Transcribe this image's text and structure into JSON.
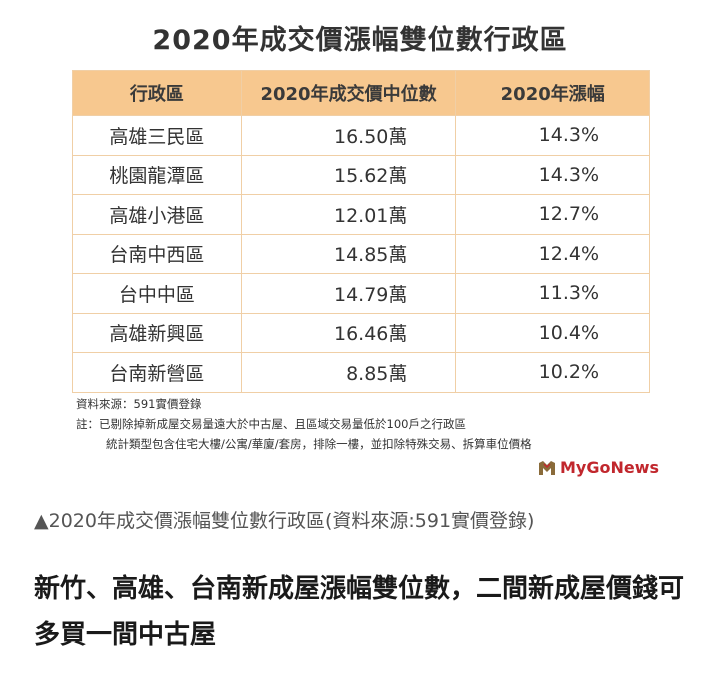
{
  "figure": {
    "title": "2020年成交價漲幅雙位數行政區",
    "table": {
      "headers": [
        "行政區",
        "2020年成交價中位數",
        "2020年漲幅"
      ],
      "rows": [
        [
          "高雄三民區",
          "16.50萬",
          "14.3%"
        ],
        [
          "桃園龍潭區",
          "15.62萬",
          "14.3%"
        ],
        [
          "高雄小港區",
          "12.01萬",
          "12.7%"
        ],
        [
          "台南中西區",
          "14.85萬",
          "12.4%"
        ],
        [
          "台中中區",
          "14.79萬",
          "11.3%"
        ],
        [
          "高雄新興區",
          "16.46萬",
          "10.4%"
        ],
        [
          "台南新營區",
          "8.85萬",
          "10.2%"
        ]
      ]
    },
    "notes": {
      "source": "資料來源：591實價登錄",
      "note1": "註：已剔除掉新成屋交易量遠大於中古屋、且區域交易量低於100戶之行政區",
      "note2": "統計類型包含住宅大樓/公寓/華廈/套房，排除一樓，並扣除特殊交易、拆算車位價格"
    },
    "logo": {
      "text": "MyGoNews",
      "icon": "mygonews-logo-icon",
      "color": "#c1272d"
    }
  },
  "caption": "▲2020年成交價漲幅雙位數行政區(資料來源:591實價登錄)",
  "headline": "新竹、高雄、台南新成屋漲幅雙位數，二間新成屋價錢可多買一間中古屋",
  "colors": {
    "header_bg": "#f7c88f",
    "border": "#f0cfa6"
  }
}
